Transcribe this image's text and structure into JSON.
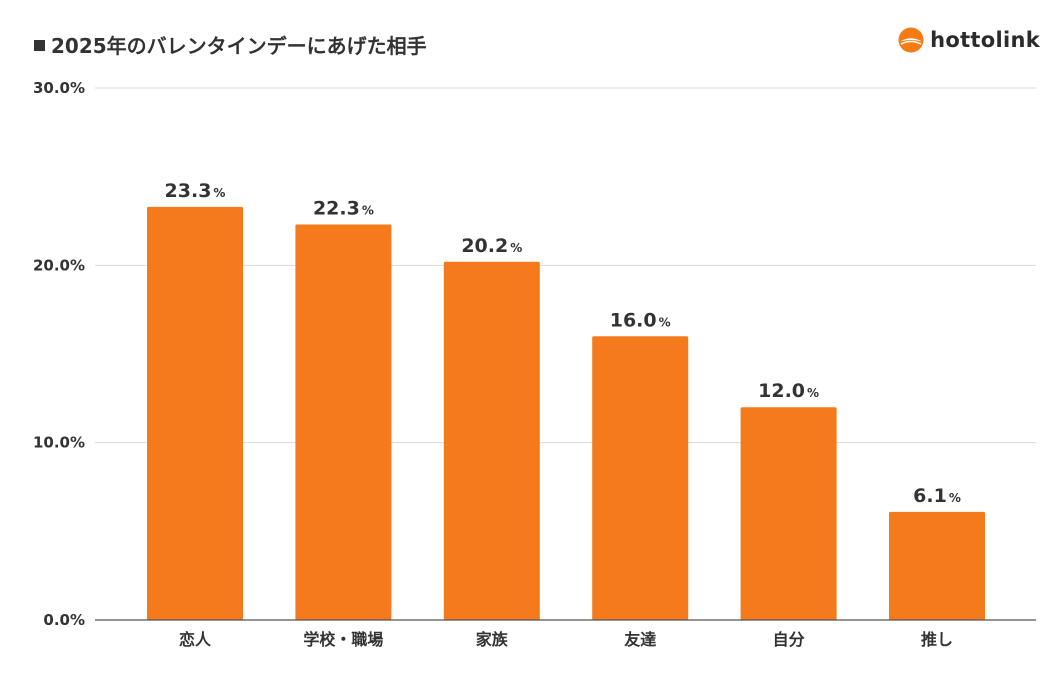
{
  "brand": {
    "name": "hottolink",
    "logo_color": "#F57C14"
  },
  "chart_data": {
    "type": "bar",
    "title": "■2025年のバレンタインデーにあげた相手",
    "title_text": "2025年のバレンタインデーにあげた相手",
    "xlabel": "",
    "ylabel": "",
    "categories": [
      "恋人",
      "学校・職場",
      "家族",
      "友達",
      "自分",
      "推し"
    ],
    "values": [
      23.3,
      22.3,
      20.2,
      16.0,
      12.0,
      6.1
    ],
    "value_labels": [
      "23.3",
      "22.3",
      "20.2",
      "16.0",
      "12.0",
      "6.1"
    ],
    "value_unit": "%",
    "ylim": [
      0,
      30
    ],
    "yticks": [
      0,
      10,
      20,
      30
    ],
    "ytick_labels": [
      "0.0%",
      "10.0%",
      "20.0%",
      "30.0%"
    ],
    "grid": true,
    "bar_color": "#F57A1C"
  }
}
